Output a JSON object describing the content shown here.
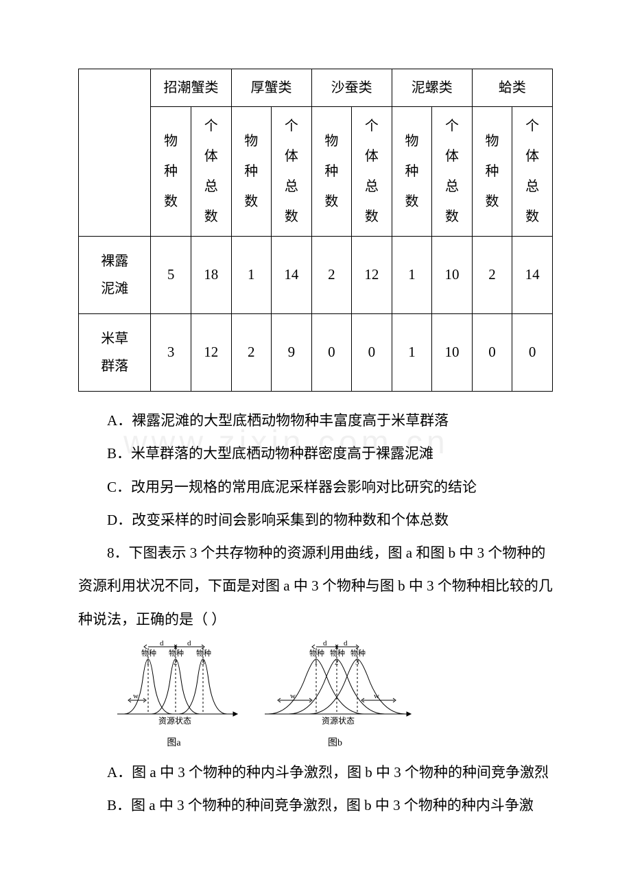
{
  "table": {
    "corner": "",
    "groups": [
      "招潮蟹类",
      "厚蟹类",
      "沙蚕类",
      "泥螺类",
      "蛤类"
    ],
    "subheaders": [
      "物种数",
      "个体总数"
    ],
    "rows": [
      {
        "label": "裸露泥滩",
        "values": [
          5,
          18,
          1,
          14,
          2,
          12,
          1,
          10,
          2,
          14
        ]
      },
      {
        "label": "米草群落",
        "values": [
          3,
          12,
          2,
          9,
          0,
          0,
          1,
          10,
          0,
          0
        ]
      }
    ]
  },
  "options7": {
    "A": "A．裸露泥滩的大型底栖动物物种丰富度高于米草群落",
    "B": "B．米草群落的大型底栖动物种群密度高于裸露泥滩",
    "C": "C．改用另一规格的常用底泥采样器会影响对比研究的结论",
    "D": "D．改变采样的时间会影响采集到的物种数和个体总数"
  },
  "q8": {
    "stem1": "8．下图表示 3 个共存物种的资源利用曲线，图 a 和图 b 中 3 个物种的资源利用状况不同，下面是对图 a 中 3 个物种与图 b 中 3 个物种相比较的几种说法，正确的是（ ）",
    "optA": "A．图 a 中 3 个物种的种内斗争激烈，图 b 中 3 个物种的种间竞争激烈",
    "optB": "B．图 a 中 3 个物种的种间竞争激烈，图 b 中 3 个物种的种内斗争激"
  },
  "figure": {
    "species_labels": [
      "物种",
      "物种",
      "物种"
    ],
    "species_nums": [
      "1",
      "2",
      "3"
    ],
    "d_label": "d",
    "w_label": "w",
    "x_axis": "资源状态",
    "caption_a": "图a",
    "caption_b": "图b",
    "colors": {
      "stroke": "#000000",
      "text": "#000000",
      "bg": "#ffffff"
    },
    "widths": {
      "a_w": 18,
      "b_w": 50
    }
  },
  "watermark": "www.zixin.com.cn"
}
